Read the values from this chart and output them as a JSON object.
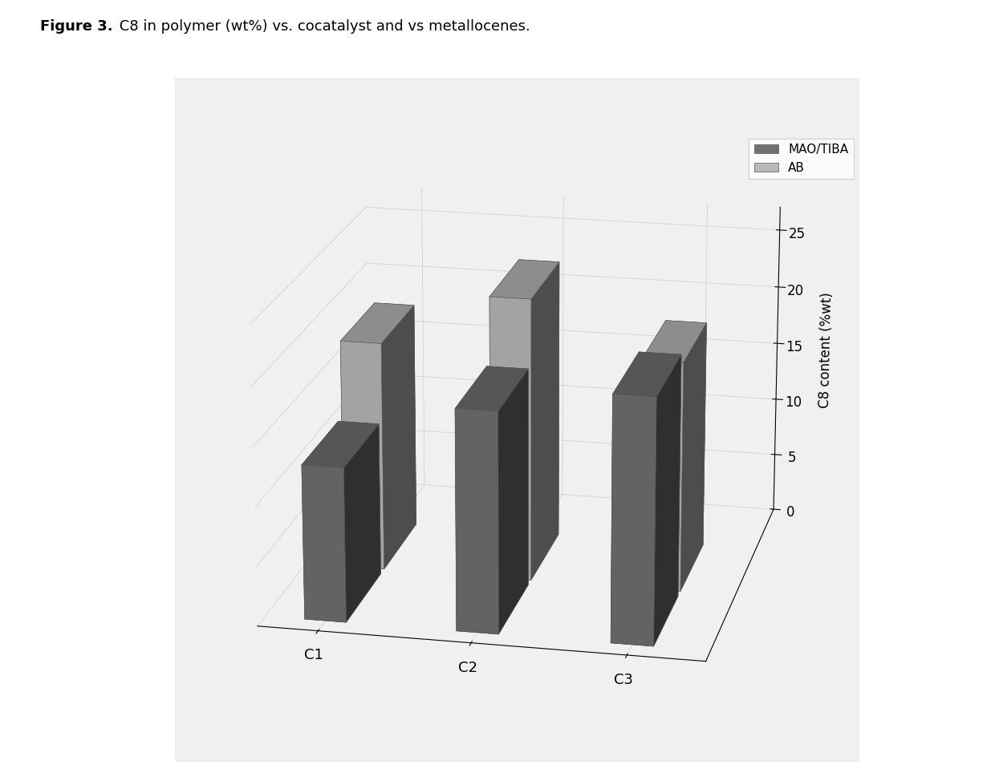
{
  "categories": [
    "C1",
    "C2",
    "C3"
  ],
  "series": [
    {
      "name": "MAO/TIBA",
      "values": [
        13.0,
        18.5,
        20.5
      ],
      "color": "#707070",
      "color_dark": "#505050"
    },
    {
      "name": "AB",
      "values": [
        19.5,
        24.0,
        19.5
      ],
      "color": "#b8b8b8",
      "color_dark": "#999999"
    }
  ],
  "ylabel": "C8 content (%wt)",
  "ylim": [
    0,
    27
  ],
  "yticks": [
    0,
    5,
    10,
    15,
    20,
    25
  ],
  "figure_title_bold": "Figure 3.",
  "figure_title_rest": " C8 in polymer (wt%) vs. cocatalyst and vs metallocenes.",
  "bg_color": "#ffffff",
  "plot_bg_color": "#f0f0f0",
  "bar_width": 0.55,
  "bar_depth": 0.5,
  "grid_color": "#cccccc",
  "elev": 18,
  "azim": -78
}
